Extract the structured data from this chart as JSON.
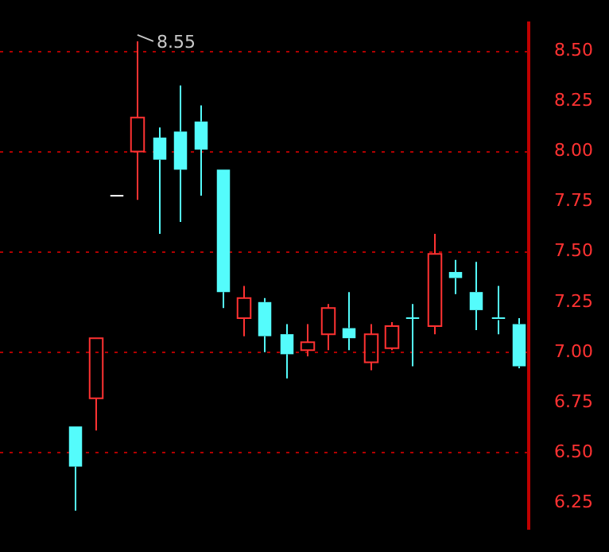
{
  "chart_data": {
    "type": "candlestick",
    "categories": [
      null,
      null,
      null,
      null,
      null,
      null,
      null,
      null,
      null,
      null,
      null,
      null,
      null,
      null,
      null,
      null,
      null,
      null,
      null,
      null,
      null,
      null,
      null,
      null,
      null
    ],
    "ohlc": [
      null,
      null,
      null,
      [
        6.63,
        6.63,
        6.21,
        6.43
      ],
      [
        6.77,
        7.07,
        6.61,
        7.07
      ],
      [
        7.78,
        7.78,
        7.78,
        7.78
      ],
      [
        8.0,
        8.55,
        7.76,
        8.17
      ],
      [
        8.07,
        8.12,
        7.59,
        7.96
      ],
      [
        8.1,
        8.33,
        7.65,
        7.91
      ],
      [
        8.15,
        8.23,
        7.78,
        8.01
      ],
      [
        7.91,
        7.91,
        7.22,
        7.3
      ],
      [
        7.17,
        7.33,
        7.08,
        7.27
      ],
      [
        7.25,
        7.27,
        7.0,
        7.08
      ],
      [
        7.09,
        7.14,
        6.87,
        6.99
      ],
      [
        7.01,
        7.14,
        6.98,
        7.05
      ],
      [
        7.09,
        7.24,
        7.01,
        7.22
      ],
      [
        7.12,
        7.3,
        7.01,
        7.07
      ],
      [
        6.95,
        7.14,
        6.91,
        7.09
      ],
      [
        7.02,
        7.15,
        7.01,
        7.13
      ],
      [
        7.17,
        7.24,
        6.93,
        7.17
      ],
      [
        7.13,
        7.59,
        7.09,
        7.49
      ],
      [
        7.4,
        7.46,
        7.29,
        7.37
      ],
      [
        7.3,
        7.45,
        7.11,
        7.21
      ],
      [
        7.17,
        7.33,
        7.09,
        7.16
      ],
      [
        7.14,
        7.17,
        6.92,
        6.93
      ]
    ],
    "colors": [
      null,
      null,
      null,
      "#54fcfc",
      "#ff3232",
      "#ffffff",
      "#ff3232",
      "#54fcfc",
      "#54fcfc",
      "#54fcfc",
      "#54fcfc",
      "#ff3232",
      "#54fcfc",
      "#54fcfc",
      "#ff3232",
      "#ff3232",
      "#54fcfc",
      "#ff3232",
      "#ff3232",
      "#54fcfc",
      "#ff3232",
      "#54fcfc",
      "#54fcfc",
      "#54fcfc",
      "#54fcfc"
    ],
    "ylim": [
      6.12,
      8.64
    ],
    "yticks": [
      {
        "value": 6.25,
        "label": "6.25"
      },
      {
        "value": 6.5,
        "label": "6.50"
      },
      {
        "value": 6.75,
        "label": "6.75"
      },
      {
        "value": 7.0,
        "label": "7.00"
      },
      {
        "value": 7.25,
        "label": "7.25"
      },
      {
        "value": 7.5,
        "label": "7.50"
      },
      {
        "value": 7.75,
        "label": "7.75"
      },
      {
        "value": 8.0,
        "label": "8.00"
      },
      {
        "value": 8.25,
        "label": "8.25"
      },
      {
        "value": 8.5,
        "label": "8.50"
      }
    ],
    "tick_labels": "y",
    "ref_lines": [
      {
        "axis": "y",
        "value": 8.5,
        "color": "#b00000",
        "line_style": "dotted"
      },
      {
        "axis": "y",
        "value": 8.0,
        "color": "#b00000",
        "line_style": "dotted"
      },
      {
        "axis": "y",
        "value": 7.5,
        "color": "#b00000",
        "line_style": "dotted"
      },
      {
        "axis": "y",
        "value": 7.0,
        "color": "#b00000",
        "line_style": "dotted"
      },
      {
        "axis": "y",
        "value": 6.5,
        "color": "#b00000",
        "line_style": "dotted"
      }
    ],
    "annotations": [
      "8.55"
    ]
  }
}
